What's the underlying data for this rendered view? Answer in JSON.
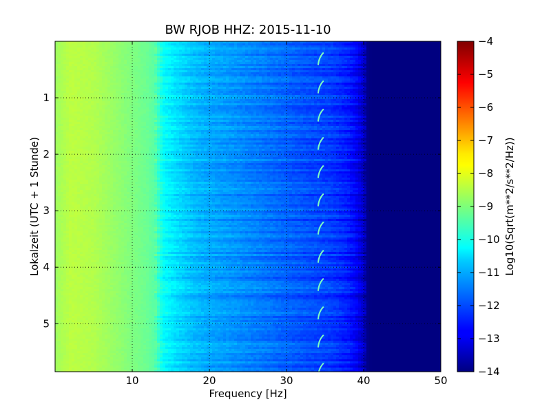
{
  "chart_data": {
    "type": "heatmap",
    "title": "BW RJOB HHZ: 2015-11-10",
    "xlabel": "Frequency [Hz]",
    "ylabel": "Lokalzeit (UTC + 1 Stunde)",
    "colorbar_label": "Log10(Sqrt(m**2/s**2/Hz))",
    "x_range": [
      0,
      50
    ],
    "y_range": [
      0,
      5.85
    ],
    "y_inverted": true,
    "x_ticks": [
      10,
      20,
      30,
      40,
      50
    ],
    "x_tick_labels": [
      "10",
      "20",
      "30",
      "40",
      "50"
    ],
    "y_ticks": [
      1,
      2,
      3,
      4,
      5
    ],
    "y_tick_labels": [
      "1",
      "2",
      "3",
      "4",
      "5"
    ],
    "color_range": [
      -14,
      -4
    ],
    "colorbar_ticks": [
      -4,
      -5,
      -6,
      -7,
      -8,
      -9,
      -10,
      -11,
      -12,
      -13,
      -14
    ],
    "colorbar_tick_labels": [
      "−4",
      "−5",
      "−6",
      "−7",
      "−8",
      "−9",
      "−10",
      "−11",
      "−12",
      "−13",
      "−14"
    ],
    "colormap": "jet",
    "grid": true,
    "spectrum_profile": {
      "frequency_hz": [
        0,
        2,
        5,
        8,
        10,
        12,
        13,
        14,
        16,
        18,
        20,
        23,
        26,
        30,
        33,
        36,
        38,
        39,
        40,
        40.5,
        41,
        50
      ],
      "log10_amplitude": [
        -8.7,
        -8.4,
        -8.5,
        -8.8,
        -9.0,
        -9.2,
        -9.4,
        -10.2,
        -10.6,
        -10.9,
        -11.1,
        -11.3,
        -11.5,
        -11.8,
        -12.0,
        -12.2,
        -12.5,
        -12.8,
        -13.3,
        -13.9,
        -14.0,
        -14.0
      ]
    },
    "tonal_line_hz": 34.5
  }
}
